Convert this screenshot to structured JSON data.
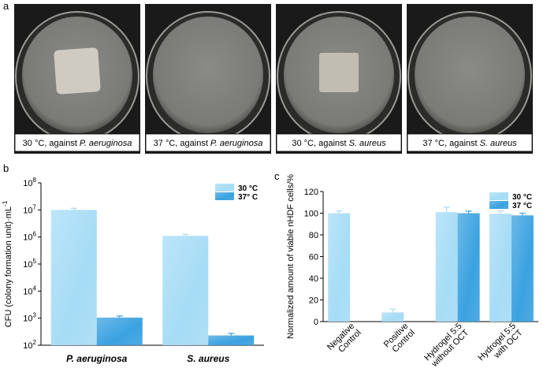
{
  "panel_labels": [
    "a",
    "b",
    "c"
  ],
  "photos": [
    {
      "temperature": "30 °C, against",
      "species": "P. aeruginosa"
    },
    {
      "temperature": "37 °C, against",
      "species": "P. aeruginosa"
    },
    {
      "temperature": "30 °C, against",
      "species": "S. aureus"
    },
    {
      "temperature": "37 °C, against",
      "species": "S. aureus"
    }
  ],
  "chart_data": [
    {
      "type": "bar",
      "log_scale": true,
      "ylabel": "CFU (colony formation unit)·mL^-1",
      "categories": [
        "P. aeruginosa",
        "S. aureus"
      ],
      "series": [
        {
          "name": "30 °C",
          "color": "#a6dcf6",
          "values": [
            10000000,
            1100000
          ],
          "errors": [
            1500000,
            150000
          ]
        },
        {
          "name": "37° C",
          "color": "#3ba2e0",
          "values": [
            1050,
            230
          ],
          "errors": [
            150,
            45
          ]
        }
      ],
      "ylim": [
        100,
        100000000
      ],
      "yticks": [
        {
          "value": 100,
          "label": "10^2"
        },
        {
          "value": 1000,
          "label": "10^3"
        },
        {
          "value": 10000,
          "label": "10^4"
        },
        {
          "value": 100000,
          "label": "10^5"
        },
        {
          "value": 1000000,
          "label": "10^6"
        },
        {
          "value": 10000000,
          "label": "10^7"
        },
        {
          "value": 100000000,
          "label": "10^8"
        }
      ],
      "legend": "upper right"
    },
    {
      "type": "bar",
      "log_scale": false,
      "ylabel": "Normalized amount of viable nHDF cells/%",
      "categories": [
        "Negative\nControl",
        "Positive\nControl",
        "Hydrogel 5:5\nwithout OCT",
        "Hydrogel 5:5\nwith OCT"
      ],
      "series": [
        {
          "name": "30 °C",
          "color": "#a6dcf6",
          "values": [
            100,
            8.5,
            101,
            99.5
          ],
          "errors": [
            2,
            3,
            4.5,
            2.5
          ]
        },
        {
          "name": "37 °C",
          "color": "#3ba2e0",
          "values": [
            null,
            null,
            100,
            98
          ],
          "errors": [
            null,
            null,
            2,
            2
          ]
        }
      ],
      "ylim": [
        0,
        120
      ],
      "yticks": [
        0,
        20,
        40,
        60,
        80,
        100,
        120
      ],
      "legend": "upper right"
    }
  ]
}
